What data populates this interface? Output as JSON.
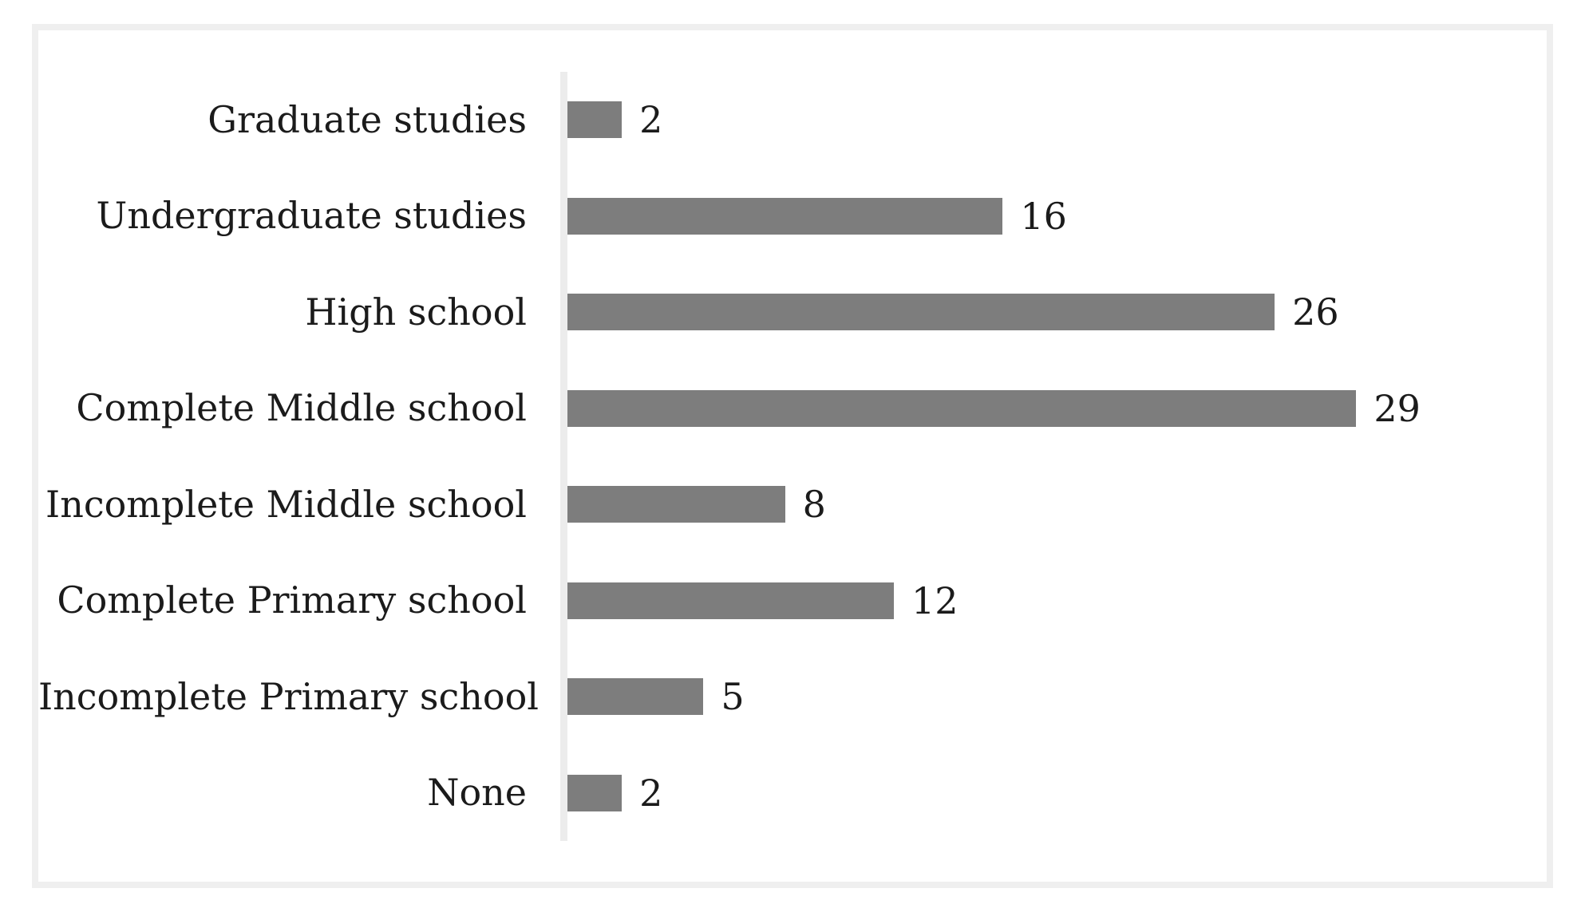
{
  "chart_data": {
    "type": "bar",
    "orientation": "horizontal",
    "title": "",
    "categories": [
      "Graduate studies",
      "Undergraduate studies",
      "High school",
      "Complete Middle school",
      "Incomplete Middle school",
      "Complete Primary school",
      "Incomplete Primary school",
      "None"
    ],
    "values": [
      2,
      16,
      26,
      29,
      8,
      12,
      5,
      2
    ],
    "value_labels": "end-of-bar",
    "xlabel": "",
    "ylabel": "",
    "xlim": [
      0,
      36
    ],
    "grid": false,
    "legend": false,
    "colors": {
      "bar": "#7d7d7d",
      "axis_line": "#ececec",
      "frame_border": "#efefef",
      "text": "#1b1b1b",
      "background": "#ffffff"
    }
  }
}
